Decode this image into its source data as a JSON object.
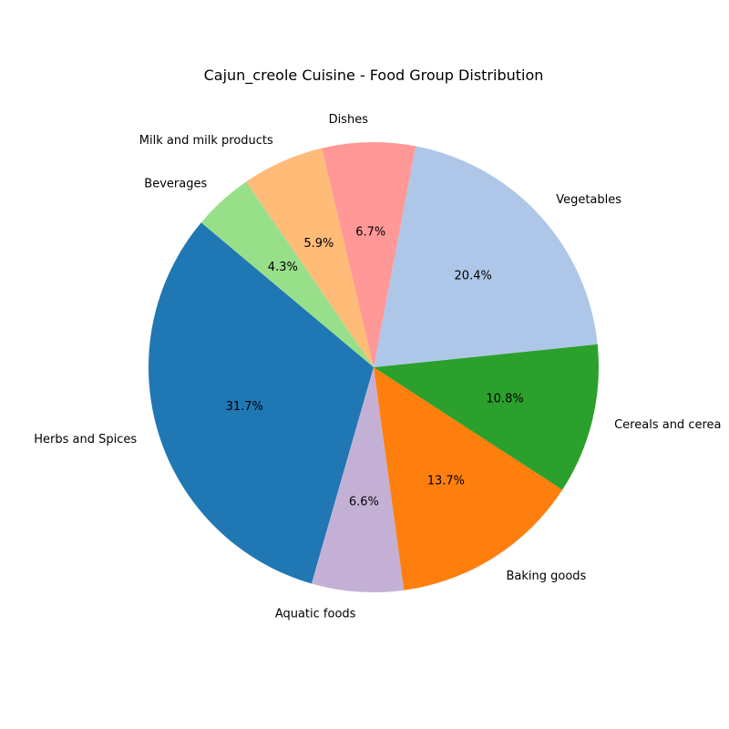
{
  "chart_data": {
    "type": "pie",
    "title": "Cajun_creole Cuisine - Food Group Distribution",
    "start_angle_deg": 140,
    "direction": "counterclockwise",
    "slices": [
      {
        "label": "Herbs and Spices",
        "value": 31.7,
        "pct_label": "31.7%",
        "color": "#1f77b4"
      },
      {
        "label": "Aquatic foods",
        "value": 6.6,
        "pct_label": "6.6%",
        "color": "#c5b0d5"
      },
      {
        "label": "Baking goods",
        "value": 13.7,
        "pct_label": "13.7%",
        "color": "#ff7f0e"
      },
      {
        "label": "Cereals and cerea",
        "value": 10.8,
        "pct_label": "10.8%",
        "color": "#2ca02c"
      },
      {
        "label": "Vegetables",
        "value": 20.4,
        "pct_label": "20.4%",
        "color": "#aec7e8"
      },
      {
        "label": "Dishes",
        "value": 6.7,
        "pct_label": "6.7%",
        "color": "#ff9896"
      },
      {
        "label": "Milk and milk products",
        "value": 5.9,
        "pct_label": "5.9%",
        "color": "#ffbb78"
      },
      {
        "label": "Beverages",
        "value": 4.3,
        "pct_label": "4.3%",
        "color": "#98df8a"
      }
    ]
  }
}
